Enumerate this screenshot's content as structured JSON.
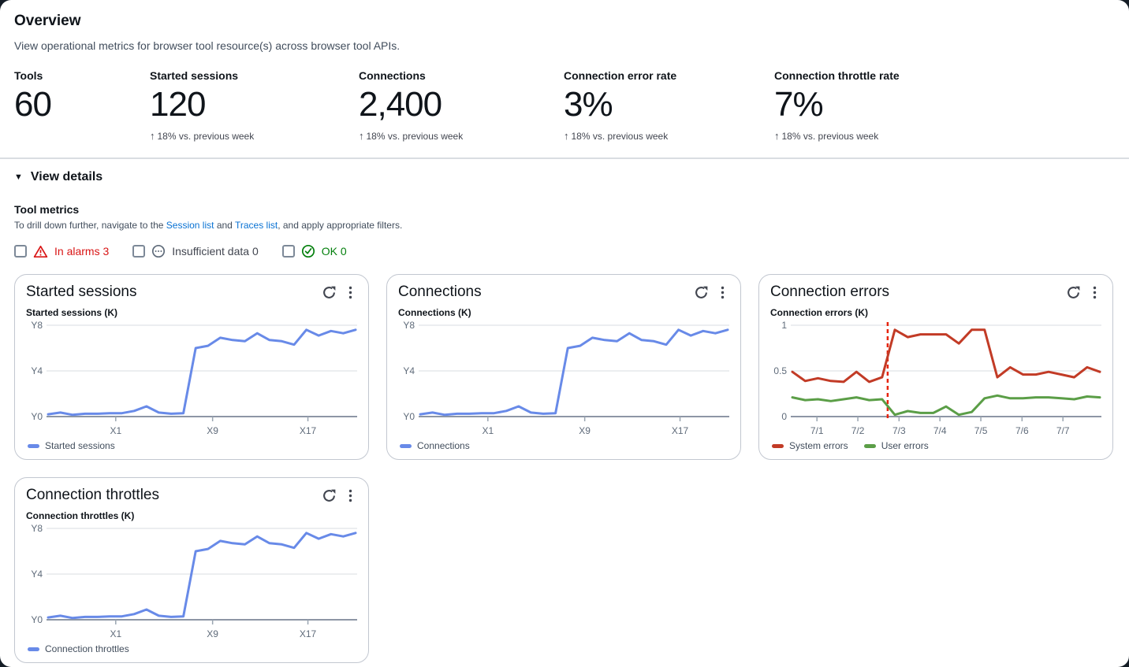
{
  "header": {
    "title": "Overview",
    "description": "View operational metrics for browser tool resource(s) across browser tool APIs.",
    "metrics": [
      {
        "label": "Tools",
        "value": "60"
      },
      {
        "label": "Started sessions",
        "value": "120",
        "delta_arrow": "↑",
        "delta": "18% vs. previous week"
      },
      {
        "label": "Connections",
        "value": "2,400",
        "delta_arrow": "↑",
        "delta": "18% vs. previous week"
      },
      {
        "label": "Connection error rate",
        "value": "3%",
        "delta_arrow": "↑",
        "delta": "18% vs. previous week"
      },
      {
        "label": "Connection throttle rate",
        "value": "7%",
        "delta_arrow": "↑",
        "delta": "18% vs. previous week"
      }
    ]
  },
  "details": {
    "toggle_icon": "▼",
    "toggle_label": "View details",
    "section_title": "Tool metrics",
    "description_parts": {
      "prefix": "To drill down further, navigate to the ",
      "link1": "Session list",
      "middle": " and ",
      "link2": "Traces list",
      "suffix": ", and apply appropriate filters."
    },
    "filters": [
      {
        "label": "In alarms 3",
        "icon": "alarm-warning-icon",
        "color": "#d91515",
        "checked": false
      },
      {
        "label": "Insufficient data 0",
        "icon": "insufficient-data-icon",
        "color": "#424650",
        "checked": false
      },
      {
        "label": "OK 0",
        "icon": "ok-check-icon",
        "color": "#037f0c",
        "checked": false
      }
    ]
  },
  "colors": {
    "series_blue": "#688ae8",
    "series_red": "#c23b26",
    "series_green": "#5b9e47",
    "alarm_vline_red": "#e6240f",
    "link_blue": "#0972d3"
  },
  "chart_data": [
    {
      "id": "started-sessions",
      "type": "line",
      "title": "Started sessions",
      "axis_label": "Started sessions (K)",
      "ylim": [
        0,
        8
      ],
      "grid": true,
      "legend_position": "bottom",
      "yticks": [
        {
          "label": "Y8",
          "value": 8
        },
        {
          "label": "Y4",
          "value": 4
        },
        {
          "label": "Y0",
          "value": 0
        }
      ],
      "xticks": [
        {
          "label": "X1",
          "pos": 0.22
        },
        {
          "label": "X9",
          "pos": 0.535
        },
        {
          "label": "X17",
          "pos": 0.845
        }
      ],
      "series": [
        {
          "name": "Started sessions",
          "color": "#688ae8",
          "values": [
            0.2,
            0.35,
            0.15,
            0.25,
            0.25,
            0.3,
            0.3,
            0.5,
            0.9,
            0.35,
            0.25,
            0.3,
            6.0,
            6.2,
            6.9,
            6.7,
            6.6,
            7.3,
            6.7,
            6.6,
            6.3,
            7.6,
            7.1,
            7.5,
            7.3,
            7.6
          ]
        }
      ]
    },
    {
      "id": "connections",
      "type": "line",
      "title": "Connections",
      "axis_label": "Connections (K)",
      "ylim": [
        0,
        8
      ],
      "grid": true,
      "legend_position": "bottom",
      "yticks": [
        {
          "label": "Y8",
          "value": 8
        },
        {
          "label": "Y4",
          "value": 4
        },
        {
          "label": "Y0",
          "value": 0
        }
      ],
      "xticks": [
        {
          "label": "X1",
          "pos": 0.22
        },
        {
          "label": "X9",
          "pos": 0.535
        },
        {
          "label": "X17",
          "pos": 0.845
        }
      ],
      "series": [
        {
          "name": "Connections",
          "color": "#688ae8",
          "values": [
            0.2,
            0.35,
            0.15,
            0.25,
            0.25,
            0.3,
            0.3,
            0.5,
            0.9,
            0.35,
            0.25,
            0.3,
            6.0,
            6.2,
            6.9,
            6.7,
            6.6,
            7.3,
            6.7,
            6.6,
            6.3,
            7.6,
            7.1,
            7.5,
            7.3,
            7.6
          ]
        }
      ]
    },
    {
      "id": "connection-errors",
      "type": "line",
      "title": "Connection errors",
      "axis_label": "Connection errors (K)",
      "ylim": [
        0,
        1
      ],
      "grid": true,
      "legend_position": "bottom",
      "yticks": [
        {
          "label": "1",
          "value": 1
        },
        {
          "label": "0.5",
          "value": 0.5
        },
        {
          "label": "0",
          "value": 0
        }
      ],
      "xticks": [
        {
          "label": "7/1",
          "pos": 0.08
        },
        {
          "label": "7/2",
          "pos": 0.213
        },
        {
          "label": "7/3",
          "pos": 0.347
        },
        {
          "label": "7/4",
          "pos": 0.48
        },
        {
          "label": "7/5",
          "pos": 0.613
        },
        {
          "label": "7/6",
          "pos": 0.747
        },
        {
          "label": "7/7",
          "pos": 0.88
        }
      ],
      "vline": {
        "pos": 0.31,
        "color": "#e6240f",
        "style": "dashed"
      },
      "series": [
        {
          "name": "System errors",
          "color": "#c23b26",
          "values": [
            0.49,
            0.39,
            0.42,
            0.39,
            0.38,
            0.49,
            0.38,
            0.43,
            0.95,
            0.87,
            0.9,
            0.9,
            0.9,
            0.8,
            0.95,
            0.95,
            0.43,
            0.54,
            0.46,
            0.46,
            0.49,
            0.46,
            0.43,
            0.54,
            0.49
          ]
        },
        {
          "name": "User errors",
          "color": "#5b9e47",
          "values": [
            0.21,
            0.18,
            0.19,
            0.17,
            0.19,
            0.21,
            0.18,
            0.19,
            0.02,
            0.06,
            0.04,
            0.04,
            0.11,
            0.02,
            0.05,
            0.2,
            0.23,
            0.2,
            0.2,
            0.21,
            0.21,
            0.2,
            0.19,
            0.22,
            0.21
          ]
        }
      ]
    },
    {
      "id": "connection-throttles",
      "type": "line",
      "title": "Connection throttles",
      "axis_label": "Connection throttles (K)",
      "ylim": [
        0,
        8
      ],
      "grid": true,
      "legend_position": "bottom",
      "yticks": [
        {
          "label": "Y8",
          "value": 8
        },
        {
          "label": "Y4",
          "value": 4
        },
        {
          "label": "Y0",
          "value": 0
        }
      ],
      "xticks": [
        {
          "label": "X1",
          "pos": 0.22
        },
        {
          "label": "X9",
          "pos": 0.535
        },
        {
          "label": "X17",
          "pos": 0.845
        }
      ],
      "series": [
        {
          "name": "Connection throttles",
          "color": "#688ae8",
          "values": [
            0.2,
            0.35,
            0.15,
            0.25,
            0.25,
            0.3,
            0.3,
            0.5,
            0.9,
            0.35,
            0.25,
            0.3,
            6.0,
            6.2,
            6.9,
            6.7,
            6.6,
            7.3,
            6.7,
            6.6,
            6.3,
            7.6,
            7.1,
            7.5,
            7.3,
            7.6
          ]
        }
      ]
    }
  ]
}
